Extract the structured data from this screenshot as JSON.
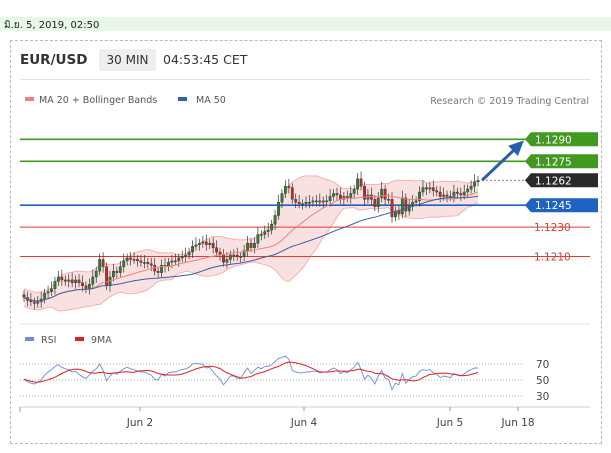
{
  "header": {
    "date_stamp": "มิ.ย. 5, 2019, 02:50",
    "symbol": "EUR/USD",
    "timeframe": "30 MIN",
    "time": "04:53:45 CET"
  },
  "legend": {
    "bollinger": {
      "label": "MA 20 + Bollinger Bands",
      "color": "#f08080"
    },
    "ma50": {
      "label": "MA 50",
      "color": "#3a5f9e"
    },
    "credit": "Research © 2019 Trading Central",
    "rsi": {
      "label": "RSI",
      "color": "#6b8fd6"
    },
    "rsi_ma": {
      "label": "9MA",
      "color": "#e02020"
    }
  },
  "chart_data": [
    {
      "type": "candlestick",
      "title": "EUR/USD 30 MIN",
      "xlabel": "",
      "ylabel": "",
      "x_ticks": [
        "Jun 2",
        "Jun 4",
        "Jun 5",
        "Jun 18"
      ],
      "ylim": [
        1.1168,
        1.131
      ],
      "levels": [
        {
          "value": 1.129,
          "label": "1.1290",
          "color": "#3f9a1e",
          "kind": "resistance"
        },
        {
          "value": 1.1275,
          "label": "1.1275",
          "color": "#3f9a1e",
          "kind": "resistance"
        },
        {
          "value": 1.1262,
          "label": "1.1262",
          "color": "#2a2a2a",
          "kind": "last price"
        },
        {
          "value": 1.1245,
          "label": "1.1245",
          "color": "#1c63c4",
          "kind": "pivot"
        },
        {
          "value": 1.123,
          "label": "1.1230",
          "color": "#e53935",
          "kind": "support"
        },
        {
          "value": 1.121,
          "label": "1.1210",
          "color": "#e53935",
          "kind": "support"
        }
      ],
      "close": [
        1.1182,
        1.118,
        1.1179,
        1.1178,
        1.1179,
        1.1181,
        1.1185,
        1.1186,
        1.1188,
        1.1193,
        1.1196,
        1.1194,
        1.1193,
        1.1194,
        1.1192,
        1.1194,
        1.1192,
        1.119,
        1.1188,
        1.1191,
        1.1196,
        1.12,
        1.1208,
        1.1203,
        1.119,
        1.1196,
        1.12,
        1.1199,
        1.1203,
        1.1207,
        1.1209,
        1.1208,
        1.1208,
        1.1207,
        1.1206,
        1.1206,
        1.1205,
        1.1204,
        1.12,
        1.1199,
        1.1204,
        1.1203,
        1.1206,
        1.1207,
        1.1207,
        1.1209,
        1.121,
        1.1211,
        1.1213,
        1.1217,
        1.1218,
        1.1219,
        1.122,
        1.1218,
        1.1219,
        1.1216,
        1.1213,
        1.1211,
        1.1206,
        1.1208,
        1.1211,
        1.1211,
        1.121,
        1.121,
        1.1214,
        1.1219,
        1.1216,
        1.1219,
        1.1225,
        1.1225,
        1.1227,
        1.1228,
        1.1232,
        1.1238,
        1.1247,
        1.1253,
        1.1258,
        1.1257,
        1.1249,
        1.1247,
        1.1246,
        1.1246,
        1.1247,
        1.1247,
        1.1248,
        1.1248,
        1.1247,
        1.1248,
        1.1248,
        1.1251,
        1.1253,
        1.1252,
        1.1249,
        1.1251,
        1.125,
        1.1253,
        1.1256,
        1.1263,
        1.1258,
        1.1249,
        1.1252,
        1.1249,
        1.1244,
        1.125,
        1.1256,
        1.1249,
        1.1249,
        1.1237,
        1.1241,
        1.1239,
        1.125,
        1.1241,
        1.1245,
        1.1247,
        1.1248,
        1.1254,
        1.1257,
        1.1256,
        1.1257,
        1.1255,
        1.1254,
        1.1251,
        1.1252,
        1.1251,
        1.1251,
        1.1254,
        1.1253,
        1.1252,
        1.1254,
        1.1256,
        1.1258,
        1.1261,
        1.1262
      ],
      "series": [
        {
          "name": "MA 20 + Bollinger Bands",
          "values": []
        },
        {
          "name": "MA 50",
          "values": []
        }
      ],
      "projection": {
        "from": 1.1262,
        "to": 1.129
      }
    },
    {
      "type": "line",
      "series": [
        {
          "name": "RSI",
          "values": [
            51,
            48,
            46,
            45,
            47,
            50,
            56,
            60,
            63,
            67,
            69,
            66,
            64,
            63,
            60,
            61,
            57,
            54,
            52,
            56,
            61,
            64,
            70,
            62,
            49,
            55,
            59,
            57,
            61,
            64,
            66,
            64,
            63,
            61,
            60,
            60,
            58,
            56,
            51,
            50,
            57,
            55,
            59,
            60,
            60,
            62,
            63,
            64,
            66,
            70,
            71,
            70,
            70,
            65,
            66,
            60,
            55,
            51,
            44,
            49,
            55,
            55,
            52,
            52,
            59,
            65,
            58,
            62,
            66,
            64,
            67,
            67,
            69,
            73,
            77,
            78,
            80,
            76,
            62,
            60,
            59,
            59,
            60,
            60,
            61,
            61,
            59,
            60,
            60,
            63,
            65,
            63,
            58,
            61,
            59,
            63,
            66,
            72,
            63,
            51,
            56,
            52,
            45,
            55,
            62,
            52,
            51,
            38,
            46,
            44,
            58,
            46,
            51,
            54,
            55,
            61,
            63,
            62,
            63,
            59,
            57,
            53,
            55,
            54,
            53,
            58,
            56,
            55,
            58,
            61,
            63,
            65,
            65
          ]
        },
        {
          "name": "9MA",
          "values": []
        }
      ],
      "reference_lines": [
        70,
        50,
        30
      ],
      "y_ticks": [
        "70",
        "50",
        "30"
      ],
      "ylim": [
        20,
        85
      ]
    }
  ]
}
